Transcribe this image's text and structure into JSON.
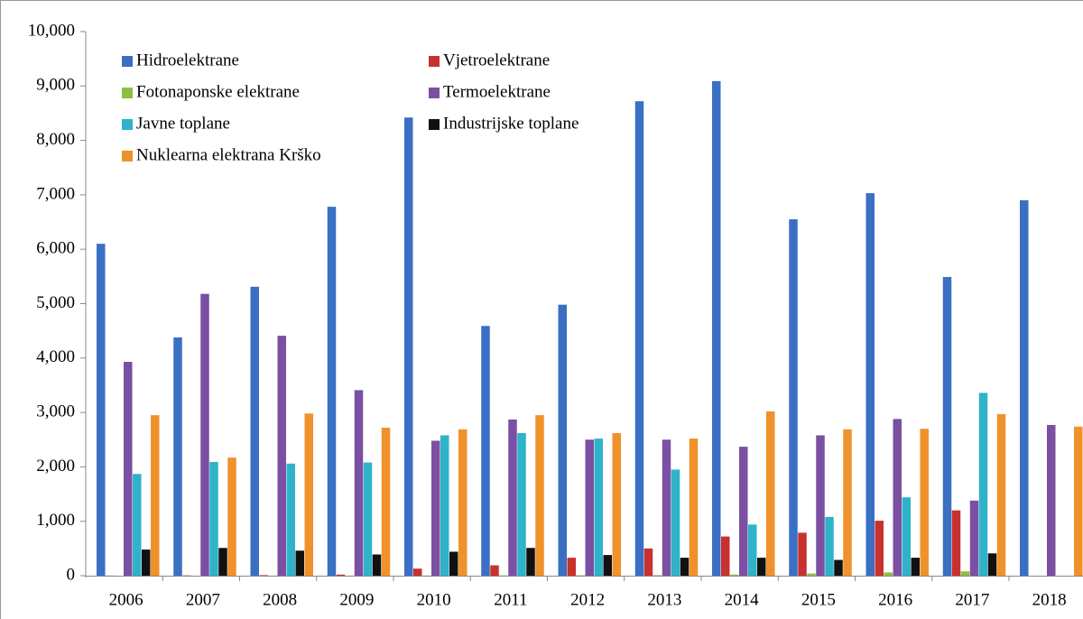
{
  "chart_data": {
    "type": "bar",
    "categories": [
      "2006",
      "2007",
      "2008",
      "2009",
      "2010",
      "2011",
      "2012",
      "2013",
      "2014",
      "2015",
      "2016",
      "2017",
      "2018"
    ],
    "series": [
      {
        "name": "Hidroelektrane",
        "color": "#3a6fc4",
        "values": [
          6100,
          4380,
          5310,
          6780,
          8420,
          4590,
          4980,
          8720,
          9090,
          6550,
          7030,
          5490,
          6900
        ]
      },
      {
        "name": "Vjetroelektrane",
        "color": "#c8322e",
        "values": [
          2,
          5,
          10,
          20,
          130,
          190,
          330,
          500,
          720,
          790,
          1010,
          1200,
          null
        ]
      },
      {
        "name": "Fotonaponske elektrane",
        "color": "#8cc043",
        "values": [
          0,
          0,
          1,
          2,
          3,
          5,
          8,
          10,
          20,
          40,
          60,
          80,
          null
        ]
      },
      {
        "name": "Termoelektrane",
        "color": "#7b4fa2",
        "values": [
          3930,
          5180,
          4410,
          3410,
          2480,
          2870,
          2500,
          2500,
          2370,
          2580,
          2880,
          1380,
          2770
        ]
      },
      {
        "name": "Javne toplane",
        "color": "#2eb3c9",
        "values": [
          1870,
          2090,
          2060,
          2080,
          2580,
          2620,
          2520,
          1950,
          940,
          1080,
          1440,
          3360,
          null
        ]
      },
      {
        "name": "Industrijske toplane",
        "color": "#111111",
        "values": [
          480,
          510,
          460,
          390,
          440,
          510,
          380,
          330,
          330,
          290,
          330,
          410,
          null
        ]
      },
      {
        "name": "Nuklearna elektrana Krško",
        "color": "#f0922b",
        "values": [
          2950,
          2170,
          2980,
          2720,
          2690,
          2950,
          2620,
          2520,
          3020,
          2690,
          2700,
          2970,
          2740
        ]
      }
    ],
    "ylim": [
      0,
      10000
    ],
    "yticks": [
      0,
      {
        "value": 1000,
        "label": "1,000"
      },
      {
        "value": 2000,
        "label": "2,000"
      },
      {
        "value": 3000,
        "label": "3,000"
      },
      {
        "value": 4000,
        "label": "4,000"
      },
      {
        "value": 5000,
        "label": "5,000"
      },
      {
        "value": 6000,
        "label": "6,000"
      },
      {
        "value": 7000,
        "label": "7,000"
      },
      {
        "value": 8000,
        "label": "8,000"
      },
      {
        "value": 9000,
        "label": "9,000"
      },
      {
        "value": 10000,
        "label": "10,000"
      }
    ],
    "grid": false
  }
}
